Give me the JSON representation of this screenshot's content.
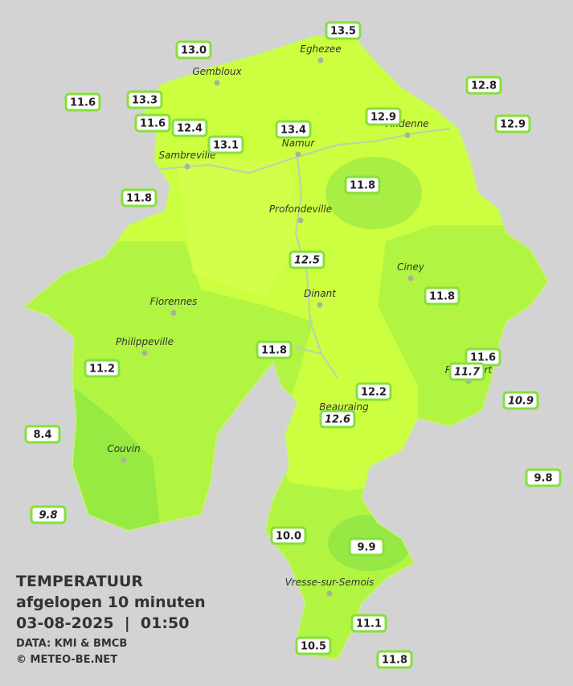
{
  "title": {
    "lines": [
      "TEMPERATUUR",
      "afgelopen 10 minuten",
      "03-08-2025  |  01:50"
    ],
    "sources": [
      "DATA: KMI & BMCB",
      "© METEO-BE.NET"
    ]
  },
  "places": [
    "Eghezee",
    "Gembloux",
    "Andenne",
    "Namur",
    "Sambreville",
    "Profondeville",
    "Ciney",
    "Dinant",
    "Florennes",
    "Philippeville",
    "Rochefort",
    "Beauraing",
    "Couvin",
    "Vresse-sur-Semois"
  ],
  "readings": [
    {
      "text": "13.5"
    },
    {
      "text": "13.0"
    },
    {
      "text": "12.8"
    },
    {
      "text": "11.6"
    },
    {
      "text": "13.3"
    },
    {
      "text": "12.9"
    },
    {
      "text": "12.9"
    },
    {
      "text": "11.6"
    },
    {
      "text": "12.4"
    },
    {
      "text": "13.4"
    },
    {
      "text": "13.1"
    },
    {
      "text": "11.8"
    },
    {
      "text": "11.8"
    },
    {
      "text": "12.5",
      "italic": true
    },
    {
      "text": "11.8"
    },
    {
      "text": "11.8"
    },
    {
      "text": "11.6"
    },
    {
      "text": "11.2"
    },
    {
      "text": "11.7",
      "italic": true
    },
    {
      "text": "12.2"
    },
    {
      "text": "10.9",
      "italic": true
    },
    {
      "text": "12.6",
      "italic": true
    },
    {
      "text": "8.4"
    },
    {
      "text": "9.8"
    },
    {
      "text": "9.8",
      "italic": true
    },
    {
      "text": "10.0"
    },
    {
      "text": "9.9"
    },
    {
      "text": "11.1"
    },
    {
      "text": "10.5"
    },
    {
      "text": "11.8"
    }
  ]
}
